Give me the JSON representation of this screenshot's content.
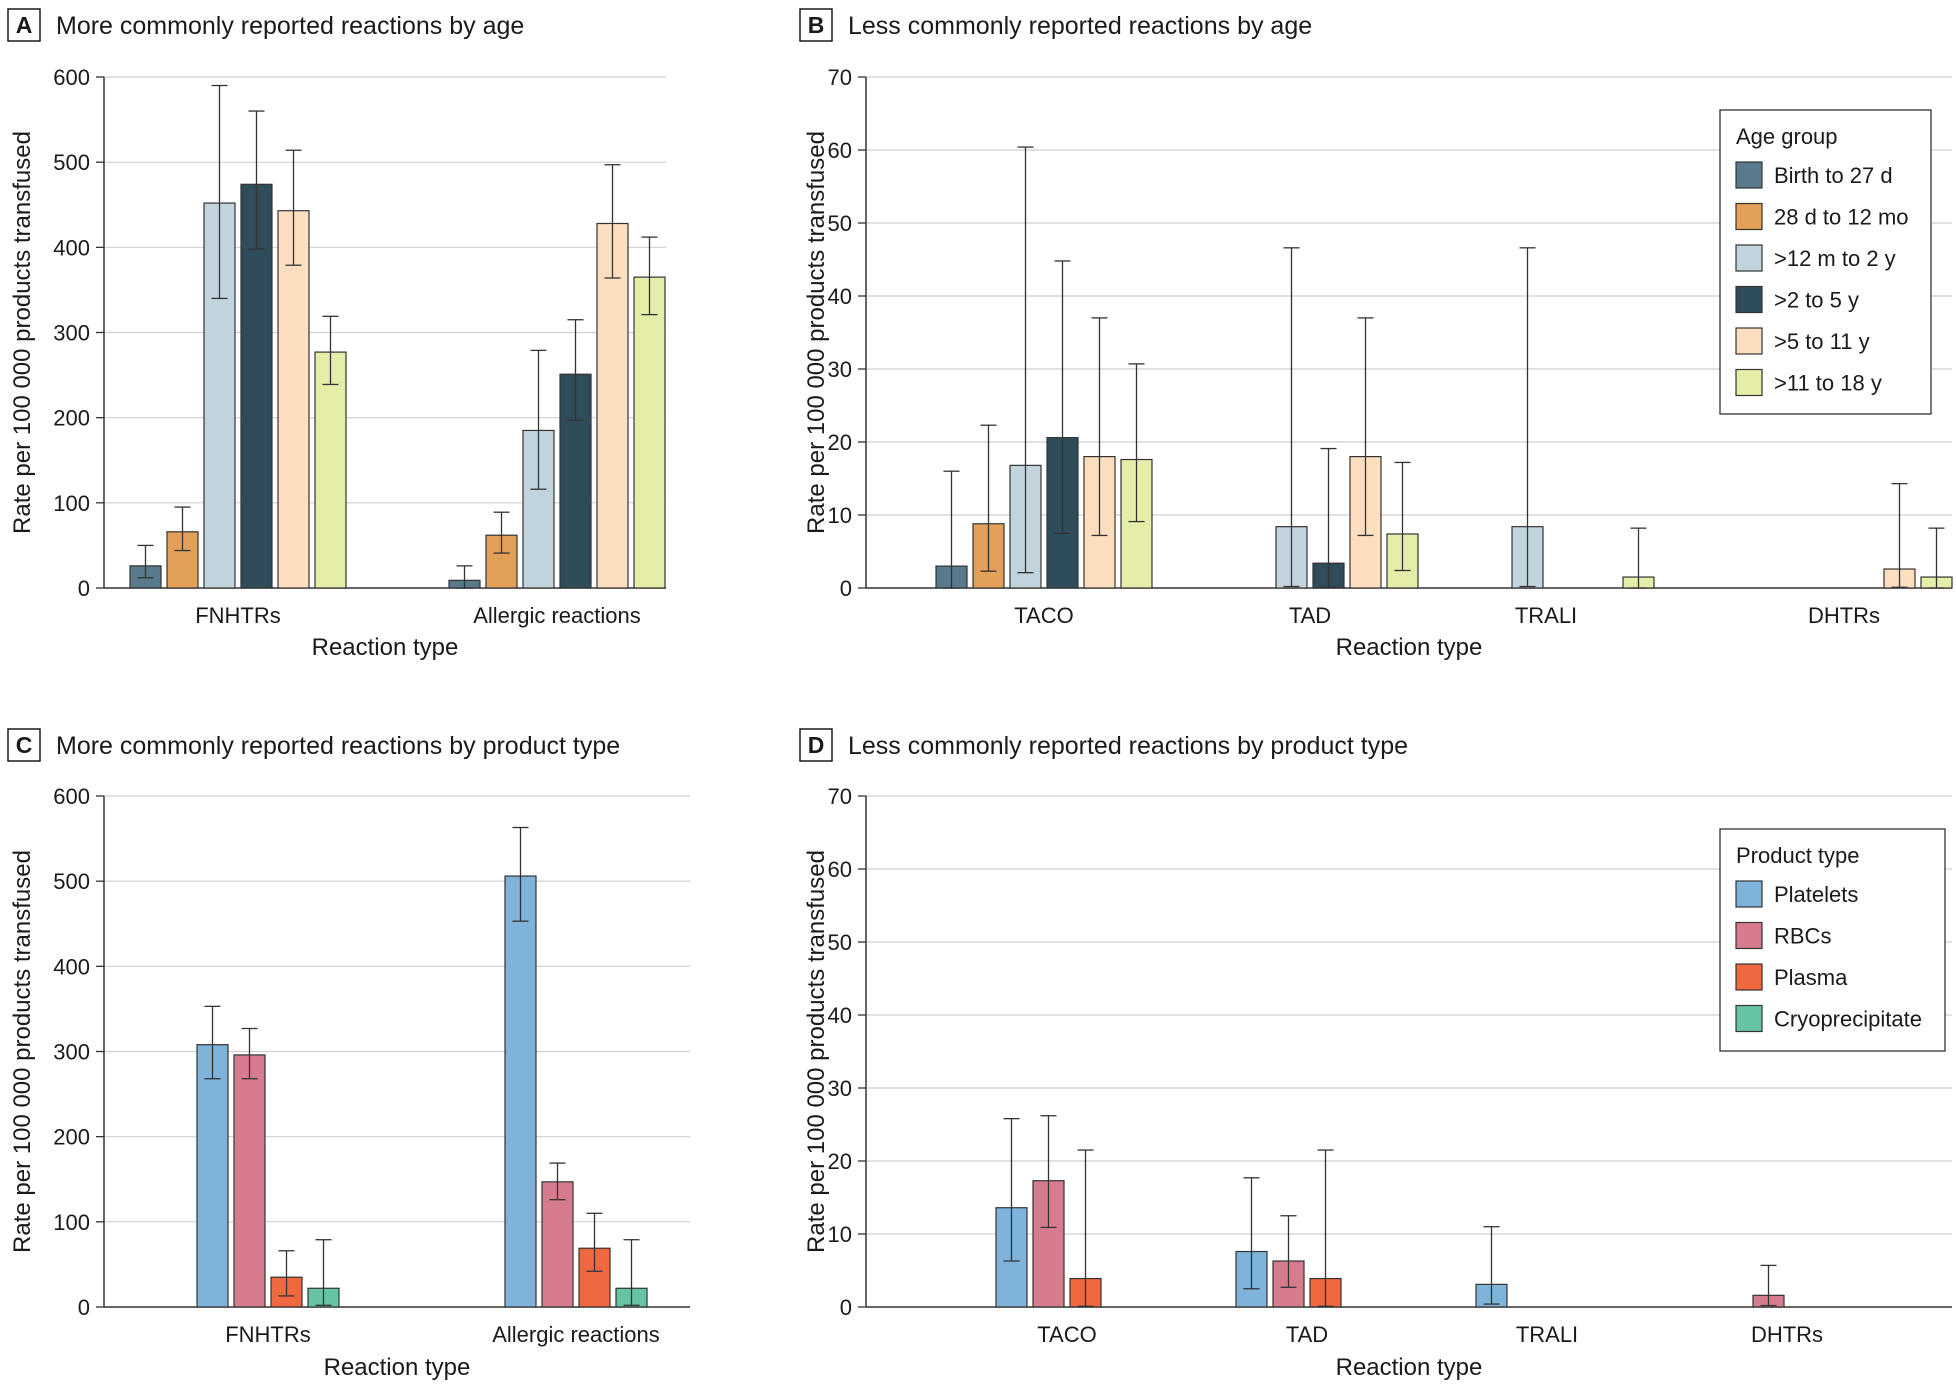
{
  "panels": [
    {
      "letter": "A",
      "title": "More commonly reported reactions by age",
      "ylabel": "Rate per 100 000 products transfused",
      "xlabel": "Reaction type",
      "chart_data": {
        "type": "bar",
        "categories": [
          "FNHTRs",
          "Allergic reactions"
        ],
        "ylim": [
          0,
          600
        ],
        "yticks": [
          0,
          100,
          200,
          300,
          400,
          500,
          600
        ],
        "grid": true,
        "series": [
          {
            "name": "Birth to 27 d",
            "color": "#587a8c",
            "values": [
              26,
              9
            ],
            "err_low": [
              12,
              0
            ],
            "err_high": [
              50,
              26
            ]
          },
          {
            "name": "28 d to 12 mo",
            "color": "#e3a058",
            "values": [
              66,
              62
            ],
            "err_low": [
              44,
              41
            ],
            "err_high": [
              95,
              89
            ]
          },
          {
            "name": ">12 m to 2 y",
            "color": "#c1d4de",
            "values": [
              452,
              185
            ],
            "err_low": [
              340,
              116
            ],
            "err_high": [
              590,
              279
            ]
          },
          {
            "name": ">2 to 5 y",
            "color": "#2f4c5a",
            "values": [
              474,
              251
            ],
            "err_low": [
              398,
              197
            ],
            "err_high": [
              560,
              315
            ]
          },
          {
            "name": ">5 to 11 y",
            "color": "#fddfc0",
            "values": [
              443,
              428
            ],
            "err_low": [
              379,
              364
            ],
            "err_high": [
              514,
              497
            ]
          },
          {
            "name": ">11 to 18 y",
            "color": "#e5eda8",
            "values": [
              277,
              365
            ],
            "err_low": [
              239,
              321
            ],
            "err_high": [
              319,
              412
            ]
          }
        ]
      }
    },
    {
      "letter": "B",
      "title": "Less commonly reported reactions by age",
      "ylabel": "Rate per 100 000 products transfused",
      "xlabel": "Reaction type",
      "legend_title": "Age group",
      "chart_data": {
        "type": "bar",
        "categories": [
          "TACO",
          "TAD",
          "TRALI",
          "DHTRs"
        ],
        "ylim": [
          0,
          70
        ],
        "yticks": [
          0,
          10,
          20,
          30,
          40,
          50,
          60,
          70
        ],
        "grid": true,
        "legend_position": "top-right",
        "series": [
          {
            "name": "Birth to 27 d",
            "color": "#587a8c",
            "values": [
              3,
              null,
              null,
              null
            ],
            "err_low": [
              0,
              null,
              null,
              null
            ],
            "err_high": [
              16,
              null,
              null,
              null
            ]
          },
          {
            "name": "28 d to 12 mo",
            "color": "#e3a058",
            "values": [
              8.8,
              null,
              null,
              null
            ],
            "err_low": [
              2.3,
              null,
              null,
              null
            ],
            "err_high": [
              22.3,
              null,
              null,
              null
            ]
          },
          {
            "name": ">12 m to 2 y",
            "color": "#c1d4de",
            "values": [
              16.8,
              8.4,
              8.4,
              null
            ],
            "err_low": [
              2.1,
              0.2,
              0.2,
              null
            ],
            "err_high": [
              60.4,
              46.6,
              46.6,
              null
            ]
          },
          {
            "name": ">2 to 5 y",
            "color": "#2f4c5a",
            "values": [
              20.6,
              3.4,
              null,
              null
            ],
            "err_low": [
              7.5,
              0.1,
              null,
              null
            ],
            "err_high": [
              44.8,
              19.1,
              null,
              null
            ]
          },
          {
            "name": ">5 to 11 y",
            "color": "#fddfc0",
            "values": [
              18,
              18,
              null,
              2.6
            ],
            "err_low": [
              7.2,
              7.2,
              null,
              0.1
            ],
            "err_high": [
              37,
              37,
              null,
              14.3
            ]
          },
          {
            "name": ">11 to 18 y",
            "color": "#e5eda8",
            "values": [
              17.6,
              7.4,
              1.5,
              1.5
            ],
            "err_low": [
              9.1,
              2.4,
              0,
              0
            ],
            "err_high": [
              30.7,
              17.2,
              8.2,
              8.2
            ]
          }
        ]
      }
    },
    {
      "letter": "C",
      "title": "More commonly reported reactions by product type",
      "ylabel": "Rate per 100 000 products transfused",
      "xlabel": "Reaction type",
      "chart_data": {
        "type": "bar",
        "categories": [
          "FNHTRs",
          "Allergic reactions"
        ],
        "ylim": [
          0,
          600
        ],
        "yticks": [
          0,
          100,
          200,
          300,
          400,
          500,
          600
        ],
        "grid": true,
        "series": [
          {
            "name": "Platelets",
            "color": "#7fb3d9",
            "values": [
              308,
              506
            ],
            "err_low": [
              268,
              453
            ],
            "err_high": [
              353,
              563
            ]
          },
          {
            "name": "RBCs",
            "color": "#d67b8e",
            "values": [
              296,
              147
            ],
            "err_low": [
              268,
              126
            ],
            "err_high": [
              327,
              169
            ]
          },
          {
            "name": "Plasma",
            "color": "#f0683f",
            "values": [
              35,
              69
            ],
            "err_low": [
              13,
              42
            ],
            "err_high": [
              66,
              110
            ]
          },
          {
            "name": "Cryoprecipitate",
            "color": "#66c4a3",
            "values": [
              22,
              22
            ],
            "err_low": [
              2,
              2
            ],
            "err_high": [
              79,
              79
            ]
          }
        ]
      }
    },
    {
      "letter": "D",
      "title": "Less commonly reported reactions by product type",
      "ylabel": "Rate per 100 000 products transfused",
      "xlabel": "Reaction type",
      "legend_title": "Product type",
      "chart_data": {
        "type": "bar",
        "categories": [
          "TACO",
          "TAD",
          "TRALI",
          "DHTRs"
        ],
        "ylim": [
          0,
          70
        ],
        "yticks": [
          0,
          10,
          20,
          30,
          40,
          50,
          60,
          70
        ],
        "grid": true,
        "legend_position": "top-right",
        "series": [
          {
            "name": "Platelets",
            "color": "#7fb3d9",
            "values": [
              13.6,
              7.6,
              3.1,
              null
            ],
            "err_low": [
              6.3,
              2.5,
              0.4,
              null
            ],
            "err_high": [
              25.8,
              17.7,
              11,
              null
            ]
          },
          {
            "name": "RBCs",
            "color": "#d67b8e",
            "values": [
              17.3,
              6.3,
              null,
              1.6
            ],
            "err_low": [
              10.9,
              2.7,
              null,
              0.2
            ],
            "err_high": [
              26.2,
              12.5,
              null,
              5.7
            ]
          },
          {
            "name": "Plasma",
            "color": "#f0683f",
            "values": [
              3.9,
              3.9,
              null,
              null
            ],
            "err_low": [
              0.1,
              0.1,
              null,
              null
            ],
            "err_high": [
              21.5,
              21.5,
              null,
              null
            ]
          },
          {
            "name": "Cryoprecipitate",
            "color": "#66c4a3",
            "values": [
              null,
              null,
              null,
              null
            ],
            "err_low": [
              null,
              null,
              null,
              null
            ],
            "err_high": [
              null,
              null,
              null,
              null
            ]
          }
        ]
      }
    }
  ]
}
